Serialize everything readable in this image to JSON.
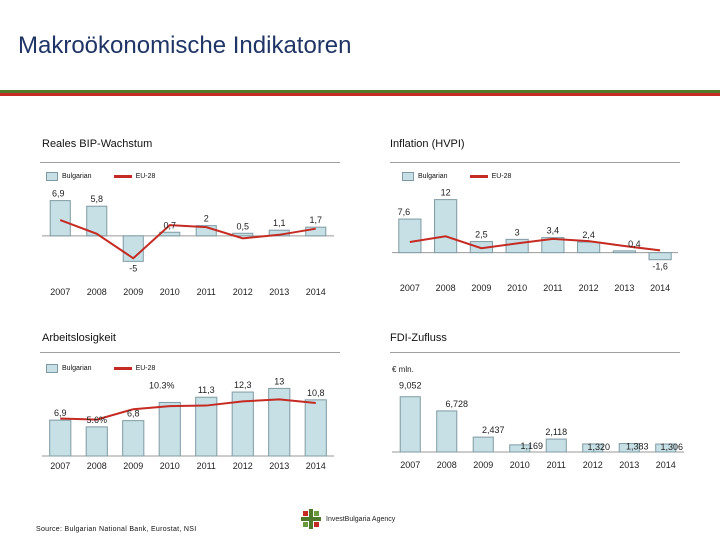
{
  "page": {
    "title": "Makroökonomische Indikatoren",
    "source": "Source: Bulgarian National Bank,  Eurostat, NSI",
    "logo_text": "InvestBulgaria Agency",
    "colors": {
      "bar_fill": "#c6e0e6",
      "bar_stroke": "#7f9aa3",
      "line": "#c52b22",
      "title": "#1f3566",
      "band_green": "#4f7a2b",
      "band_red": "#c52b22"
    }
  },
  "legend": {
    "bulgarian": "Bulgarian",
    "eu": "EU-28"
  },
  "chart_data": [
    {
      "id": "gdp",
      "type": "bar",
      "title": "Reales BIP-Wachstum",
      "categories": [
        "2007",
        "2008",
        "2009",
        "2010",
        "2011",
        "2012",
        "2013",
        "2014"
      ],
      "series": [
        {
          "name": "Bulgarian",
          "values": [
            6.9,
            5.8,
            -5,
            0.7,
            2,
            0.5,
            1.1,
            1.7
          ],
          "labels": [
            "6,9",
            "5,8",
            "-5",
            "0,7",
            "2",
            "0,5",
            "1,1",
            "1,7"
          ]
        },
        {
          "name": "EU-28",
          "kind": "line",
          "values": [
            3.1,
            0.4,
            -4.4,
            2.1,
            1.7,
            -0.5,
            0.2,
            1.4
          ]
        }
      ],
      "ylim": [
        -6.5,
        8
      ]
    },
    {
      "id": "inflation",
      "type": "bar",
      "title": "Inflation (HVPI)",
      "categories": [
        "2007",
        "2008",
        "2009",
        "2010",
        "2011",
        "2012",
        "2013",
        "2014"
      ],
      "series": [
        {
          "name": "Bulgarian",
          "values": [
            7.6,
            12,
            2.5,
            3,
            3.4,
            2.4,
            0.4,
            -1.6
          ],
          "labels": [
            "7,6",
            "12",
            "2,5",
            "3",
            "3,4",
            "2,4",
            "0,4",
            "-1,6"
          ]
        },
        {
          "name": "EU-28",
          "kind": "line",
          "values": [
            2.4,
            3.7,
            1.0,
            2.1,
            3.1,
            2.6,
            1.5,
            0.5
          ]
        }
      ],
      "ylim": [
        -2.8,
        13.5
      ]
    },
    {
      "id": "unemployment",
      "type": "bar",
      "title": "Arbeitslosigkeit",
      "categories": [
        "2007",
        "2008",
        "2009",
        "2010",
        "2011",
        "2012",
        "2013",
        "2014"
      ],
      "series": [
        {
          "name": "Bulgarian",
          "values": [
            6.9,
            5.6,
            6.8,
            10.3,
            11.3,
            12.3,
            13,
            10.8
          ],
          "labels": [
            "6,9",
            "5.6%",
            "6,8",
            "10.3%",
            "11,3",
            "12,3",
            "13",
            "10,8"
          ]
        },
        {
          "name": "EU-28",
          "kind": "line",
          "values": [
            7.2,
            7.0,
            9.0,
            9.6,
            9.7,
            10.5,
            10.9,
            10.2
          ]
        }
      ],
      "ylim": [
        0,
        15
      ]
    },
    {
      "id": "fdi",
      "type": "bar",
      "title": "FDI-Zufluss",
      "unit": "€ mln.",
      "categories": [
        "2007",
        "2008",
        "2009",
        "2010",
        "2011",
        "2012",
        "2013",
        "2014"
      ],
      "series": [
        {
          "name": "FDI",
          "values": [
            9052,
            6728,
            2437,
            1169,
            2118,
            1320,
            1383,
            1306
          ],
          "labels": [
            "9,052",
            "6,728",
            "2,437",
            "1,169",
            "2,118",
            "1,320",
            "1,383",
            "1,306"
          ]
        }
      ],
      "ylim": [
        0,
        9500
      ]
    }
  ]
}
